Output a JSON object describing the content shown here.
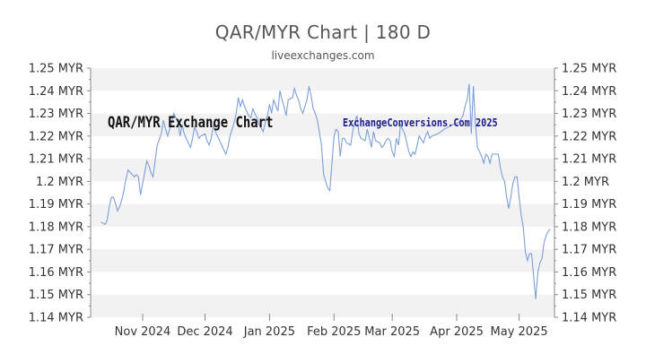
{
  "title": "QAR/MYR Chart | 180 D",
  "subtitle": "liveexchanges.com",
  "watermarks": {
    "left": "QAR/MYR Exchange Chart",
    "right": "ExchangeConversions.Com 2025"
  },
  "colors": {
    "line": "#7b9fd9",
    "band": "#f2f2f2",
    "axis": "#888888",
    "text": "#333333",
    "watermark_right": "#1a1a8c"
  },
  "chart_data": {
    "type": "line",
    "title": "QAR/MYR Chart | 180 D",
    "xlabel": "",
    "ylabel": "",
    "ylim": [
      1.14,
      1.25
    ],
    "y_ticks": [
      "1.14 MYR",
      "1.15 MYR",
      "1.16 MYR",
      "1.17 MYR",
      "1.18 MYR",
      "1.19 MYR",
      "1.2 MYR",
      "1.21 MYR",
      "1.22 MYR",
      "1.23 MYR",
      "1.24 MYR",
      "1.25 MYR"
    ],
    "y_tick_values": [
      1.14,
      1.15,
      1.16,
      1.17,
      1.18,
      1.19,
      1.2,
      1.21,
      1.22,
      1.23,
      1.24,
      1.25
    ],
    "x_ticks": [
      "Nov 2024",
      "Dec 2024",
      "Jan 2025",
      "Feb 2025",
      "Mar 2025",
      "Apr 2025",
      "May 2025"
    ],
    "x_tick_dates": [
      "2024-11-01",
      "2024-12-01",
      "2025-01-01",
      "2025-02-01",
      "2025-03-01",
      "2025-04-01",
      "2025-05-01"
    ],
    "x_range": [
      "2024-10-07",
      "2025-05-18"
    ],
    "grid": "horizontal bands",
    "series": [
      {
        "points": [
          [
            "2024-10-12",
            1.182
          ],
          [
            "2024-10-14",
            1.181
          ],
          [
            "2024-10-15",
            1.183
          ],
          [
            "2024-10-16",
            1.189
          ],
          [
            "2024-10-17",
            1.193
          ],
          [
            "2024-10-18",
            1.193
          ],
          [
            "2024-10-20",
            1.187
          ],
          [
            "2024-10-21",
            1.189
          ],
          [
            "2024-10-22",
            1.192
          ],
          [
            "2024-10-23",
            1.196
          ],
          [
            "2024-10-24",
            1.201
          ],
          [
            "2024-10-25",
            1.205
          ],
          [
            "2024-10-27",
            1.203
          ],
          [
            "2024-10-28",
            1.202
          ],
          [
            "2024-10-29",
            1.203
          ],
          [
            "2024-10-30",
            1.202
          ],
          [
            "2024-10-31",
            1.194
          ],
          [
            "2024-11-01",
            1.199
          ],
          [
            "2024-11-03",
            1.209
          ],
          [
            "2024-11-04",
            1.207
          ],
          [
            "2024-11-05",
            1.204
          ],
          [
            "2024-11-06",
            1.202
          ],
          [
            "2024-11-07",
            1.209
          ],
          [
            "2024-11-08",
            1.216
          ],
          [
            "2024-11-10",
            1.221
          ],
          [
            "2024-11-11",
            1.227
          ],
          [
            "2024-11-12",
            1.223
          ],
          [
            "2024-11-13",
            1.22
          ],
          [
            "2024-11-15",
            1.226
          ],
          [
            "2024-11-16",
            1.23
          ],
          [
            "2024-11-17",
            1.228
          ],
          [
            "2024-11-18",
            1.226
          ],
          [
            "2024-11-19",
            1.22
          ],
          [
            "2024-11-20",
            1.225
          ],
          [
            "2024-11-21",
            1.221
          ],
          [
            "2024-11-22",
            1.219
          ],
          [
            "2024-11-24",
            1.215
          ],
          [
            "2024-11-25",
            1.219
          ],
          [
            "2024-11-26",
            1.224
          ],
          [
            "2024-11-27",
            1.222
          ],
          [
            "2024-11-28",
            1.219
          ],
          [
            "2024-11-29",
            1.22
          ],
          [
            "2024-12-01",
            1.221
          ],
          [
            "2024-12-02",
            1.218
          ],
          [
            "2024-12-03",
            1.216
          ],
          [
            "2024-12-04",
            1.219
          ],
          [
            "2024-12-05",
            1.225
          ],
          [
            "2024-12-06",
            1.222
          ],
          [
            "2024-12-08",
            1.218
          ],
          [
            "2024-12-09",
            1.216
          ],
          [
            "2024-12-10",
            1.214
          ],
          [
            "2024-12-11",
            1.212
          ],
          [
            "2024-12-12",
            1.215
          ],
          [
            "2024-12-13",
            1.22
          ],
          [
            "2024-12-15",
            1.226
          ],
          [
            "2024-12-16",
            1.23
          ],
          [
            "2024-12-17",
            1.237
          ],
          [
            "2024-12-18",
            1.233
          ],
          [
            "2024-12-19",
            1.236
          ],
          [
            "2024-12-20",
            1.233
          ],
          [
            "2024-12-22",
            1.229
          ],
          [
            "2024-12-23",
            1.228
          ],
          [
            "2024-12-24",
            1.232
          ],
          [
            "2024-12-26",
            1.228
          ],
          [
            "2024-12-27",
            1.225
          ],
          [
            "2024-12-29",
            1.222
          ],
          [
            "2024-12-30",
            1.226
          ],
          [
            "2024-12-31",
            1.229
          ],
          [
            "2025-01-01",
            1.234
          ],
          [
            "2025-01-02",
            1.23
          ],
          [
            "2025-01-03",
            1.236
          ],
          [
            "2025-01-05",
            1.231
          ],
          [
            "2025-01-06",
            1.24
          ],
          [
            "2025-01-07",
            1.236
          ],
          [
            "2025-01-08",
            1.233
          ],
          [
            "2025-01-09",
            1.229
          ],
          [
            "2025-01-10",
            1.236
          ],
          [
            "2025-01-12",
            1.237
          ],
          [
            "2025-01-13",
            1.241
          ],
          [
            "2025-01-14",
            1.238
          ],
          [
            "2025-01-15",
            1.236
          ],
          [
            "2025-01-16",
            1.232
          ],
          [
            "2025-01-17",
            1.23
          ],
          [
            "2025-01-19",
            1.236
          ],
          [
            "2025-01-20",
            1.242
          ],
          [
            "2025-01-21",
            1.238
          ],
          [
            "2025-01-22",
            1.232
          ],
          [
            "2025-01-23",
            1.23
          ],
          [
            "2025-01-24",
            1.227
          ],
          [
            "2025-01-26",
            1.216
          ],
          [
            "2025-01-27",
            1.203
          ],
          [
            "2025-01-28",
            1.2
          ],
          [
            "2025-01-29",
            1.197
          ],
          [
            "2025-01-30",
            1.196
          ],
          [
            "2025-02-01",
            1.22
          ],
          [
            "2025-02-02",
            1.223
          ],
          [
            "2025-02-03",
            1.222
          ],
          [
            "2025-02-04",
            1.211
          ],
          [
            "2025-02-05",
            1.219
          ],
          [
            "2025-02-06",
            1.219
          ],
          [
            "2025-02-07",
            1.217
          ],
          [
            "2025-02-09",
            1.216
          ],
          [
            "2025-02-10",
            1.222
          ],
          [
            "2025-02-11",
            1.226
          ],
          [
            "2025-02-12",
            1.229
          ],
          [
            "2025-02-13",
            1.221
          ],
          [
            "2025-02-14",
            1.219
          ],
          [
            "2025-02-16",
            1.218
          ],
          [
            "2025-02-17",
            1.223
          ],
          [
            "2025-02-18",
            1.219
          ],
          [
            "2025-02-19",
            1.215
          ],
          [
            "2025-02-20",
            1.222
          ],
          [
            "2025-02-21",
            1.218
          ],
          [
            "2025-02-23",
            1.217
          ],
          [
            "2025-02-24",
            1.215
          ],
          [
            "2025-02-25",
            1.216
          ],
          [
            "2025-02-26",
            1.218
          ],
          [
            "2025-02-27",
            1.219
          ],
          [
            "2025-02-28",
            1.218
          ],
          [
            "2025-03-01",
            1.213
          ],
          [
            "2025-03-02",
            1.211
          ],
          [
            "2025-03-03",
            1.219
          ],
          [
            "2025-03-04",
            1.216
          ],
          [
            "2025-03-05",
            1.225
          ],
          [
            "2025-03-06",
            1.223
          ],
          [
            "2025-03-07",
            1.221
          ],
          [
            "2025-03-09",
            1.213
          ],
          [
            "2025-03-10",
            1.211
          ],
          [
            "2025-03-11",
            1.213
          ],
          [
            "2025-03-12",
            1.212
          ],
          [
            "2025-03-13",
            1.216
          ],
          [
            "2025-03-14",
            1.22
          ],
          [
            "2025-03-16",
            1.217
          ],
          [
            "2025-03-17",
            1.22
          ],
          [
            "2025-03-18",
            1.222
          ],
          [
            "2025-03-19",
            1.219
          ],
          [
            "2025-03-20",
            1.22
          ],
          [
            "2025-03-23",
            1.221
          ],
          [
            "2025-03-26",
            1.223
          ],
          [
            "2025-03-30",
            1.225
          ],
          [
            "2025-04-02",
            1.226
          ],
          [
            "2025-04-04",
            1.229
          ],
          [
            "2025-04-05",
            1.233
          ],
          [
            "2025-04-06",
            1.236
          ],
          [
            "2025-04-07",
            1.243
          ],
          [
            "2025-04-08",
            1.221
          ],
          [
            "2025-04-09",
            1.242
          ],
          [
            "2025-04-10",
            1.225
          ],
          [
            "2025-04-11",
            1.215
          ],
          [
            "2025-04-13",
            1.211
          ],
          [
            "2025-04-14",
            1.208
          ],
          [
            "2025-04-15",
            1.212
          ],
          [
            "2025-04-16",
            1.211
          ],
          [
            "2025-04-17",
            1.208
          ],
          [
            "2025-04-18",
            1.212
          ],
          [
            "2025-04-20",
            1.212
          ],
          [
            "2025-04-21",
            1.212
          ],
          [
            "2025-04-22",
            1.206
          ],
          [
            "2025-04-23",
            1.202
          ],
          [
            "2025-04-24",
            1.2
          ],
          [
            "2025-04-25",
            1.193
          ],
          [
            "2025-04-26",
            1.188
          ],
          [
            "2025-04-27",
            1.193
          ],
          [
            "2025-04-28",
            1.199
          ],
          [
            "2025-04-29",
            1.202
          ],
          [
            "2025-04-30",
            1.202
          ],
          [
            "2025-05-01",
            1.193
          ],
          [
            "2025-05-02",
            1.185
          ],
          [
            "2025-05-03",
            1.18
          ],
          [
            "2025-05-04",
            1.169
          ],
          [
            "2025-05-05",
            1.165
          ],
          [
            "2025-05-06",
            1.168
          ],
          [
            "2025-05-07",
            1.168
          ],
          [
            "2025-05-08",
            1.158
          ],
          [
            "2025-05-09",
            1.148
          ],
          [
            "2025-05-10",
            1.16
          ],
          [
            "2025-05-11",
            1.164
          ],
          [
            "2025-05-12",
            1.166
          ],
          [
            "2025-05-13",
            1.173
          ],
          [
            "2025-05-14",
            1.176
          ],
          [
            "2025-05-15",
            1.178
          ],
          [
            "2025-05-16",
            1.179
          ]
        ]
      }
    ]
  }
}
